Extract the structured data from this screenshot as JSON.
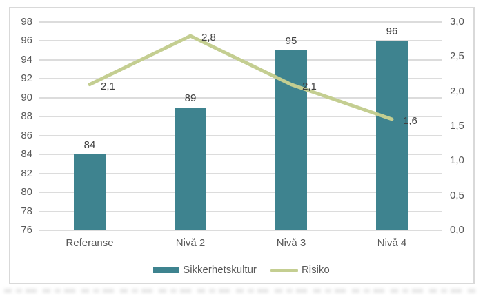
{
  "chart_data": {
    "type": "bar",
    "subtype": "bar-line-combo",
    "title": "",
    "categories": [
      "Referanse",
      "Nivå 2",
      "Nivå 3",
      "Nivå 4"
    ],
    "series": [
      {
        "name": "Sikkerhetskultur",
        "chart_type": "bar",
        "axis": "left",
        "values": [
          84,
          89,
          95,
          96
        ],
        "value_labels": [
          "84",
          "89",
          "95",
          "96"
        ],
        "color": "#3E838F"
      },
      {
        "name": "Risiko",
        "chart_type": "line",
        "axis": "right",
        "values": [
          2.1,
          2.8,
          2.1,
          1.6
        ],
        "value_labels": [
          "2,1",
          "2,8",
          "2,1",
          "1,6"
        ],
        "color": "#C4CE91"
      }
    ],
    "left_axis": {
      "min": 76,
      "max": 98,
      "step": 2,
      "tick_labels": [
        "98",
        "96",
        "94",
        "92",
        "90",
        "88",
        "86",
        "84",
        "82",
        "80",
        "78",
        "76"
      ]
    },
    "right_axis": {
      "min": 0.0,
      "max": 3.0,
      "step": 0.5,
      "tick_labels": [
        "3,0",
        "2,5",
        "2,0",
        "1,5",
        "1,0",
        "0,5",
        "0,0"
      ]
    },
    "grid": true,
    "legend_position": "bottom",
    "colors": {
      "bar": "#3E838F",
      "line": "#C4CE91",
      "grid": "#DCDCDC",
      "frame": "#D9D9D9",
      "tick_text": "#595959",
      "label_text": "#404040"
    }
  }
}
